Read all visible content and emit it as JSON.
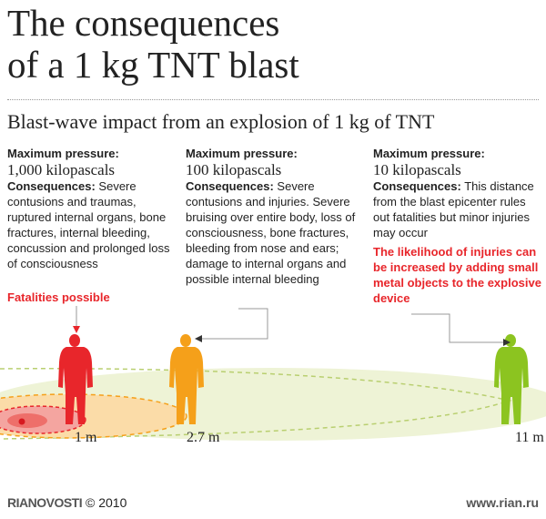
{
  "title": {
    "line1": "The consequences",
    "line2": "of a 1 kg TNT blast"
  },
  "subtitle": "Blast-wave impact from an explosion of 1 kg of TNT",
  "zones": [
    {
      "heading": "Maximum pressure:",
      "pressure": "1,000 kilopascals",
      "consequences_label": "Consequences:",
      "consequences_text": " Severe contusions and traumas, ruptured internal organs, bone fractures, internal bleeding, concussion and prolonged loss of consciousness",
      "note": "Fatalities possible",
      "distance": "1 m",
      "color": "#e8262b"
    },
    {
      "heading": "Maximum pressure:",
      "pressure": "100 kilopascals",
      "consequences_label": "Consequences:",
      "consequences_text": " Severe contusions and injuries. Severe bruising over entire body, loss of consciousness, bone fractures, bleeding from nose and ears; damage to internal organs and possible internal bleeding",
      "distance": "2.7 m",
      "color": "#f5a01a"
    },
    {
      "heading": "Maximum pressure:",
      "pressure": "10 kilopascals",
      "consequences_label": "Consequences:",
      "consequences_text": " This distance from the blast epicenter rules out fatalities but minor injuries may occur",
      "note": "The likelihood of injuries can be increased by adding small metal objects to the explosive device",
      "distance": "11 m",
      "color": "#8cc420"
    }
  ],
  "footer": {
    "logo": "RIANOVOSTI",
    "copyright": "© 2010",
    "url": "www.rian.ru"
  }
}
